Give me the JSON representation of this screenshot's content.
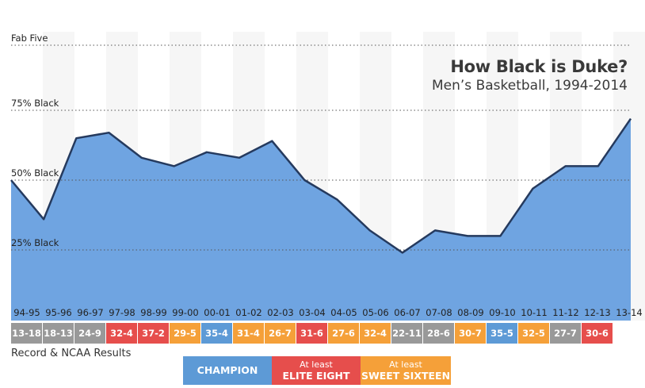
{
  "header": {
    "title": "How Black is Duke?",
    "subtitle": "Men’s Basketball, 1994-2014"
  },
  "reference_lines": [
    {
      "label": "Fab Five",
      "value": 100
    },
    {
      "label": "75% Black",
      "value": 75
    },
    {
      "label": "50% Black",
      "value": 50
    },
    {
      "label": "25% Black",
      "value": 25
    }
  ],
  "caption": "Record & NCAA Results",
  "legend": {
    "champion": "CHAMPION",
    "elite_small": "At least",
    "elite_big": "ELITE EIGHT",
    "sweet_small": "At least",
    "sweet_big": "SWEET SIXTEEN"
  },
  "colors": {
    "area_fill": "#6fa4e1",
    "line": "#253a5e",
    "champion": "#5d9ad6",
    "elite_eight": "#e64e4c",
    "sweet_sixteen": "#f5a039",
    "other": "#999999"
  },
  "chart_data": {
    "type": "area",
    "title": "How Black is Duke?",
    "subtitle": "Men’s Basketball, 1994-2014",
    "xlabel": "",
    "ylabel": "",
    "ylim": [
      0,
      100
    ],
    "x": [
      "94-95",
      "95-96",
      "96-97",
      "97-98",
      "98-99",
      "99-00",
      "00-01",
      "01-02",
      "02-03",
      "03-04",
      "04-05",
      "05-06",
      "06-07",
      "07-08",
      "08-09",
      "09-10",
      "10-11",
      "11-12",
      "12-13",
      "13-14"
    ],
    "series": [
      {
        "values": [
          50,
          36,
          65,
          67,
          58,
          55,
          60,
          58,
          64,
          50,
          43,
          32,
          24,
          32,
          30,
          30,
          47,
          55,
          55,
          72
        ]
      }
    ],
    "records": [
      "13-18",
      "18-13",
      "24-9",
      "32-4",
      "37-2",
      "29-5",
      "35-4",
      "31-4",
      "26-7",
      "31-6",
      "27-6",
      "32-4",
      "22-11",
      "28-6",
      "30-7",
      "35-5",
      "32-5",
      "27-7",
      "30-6"
    ],
    "results": [
      "other",
      "other",
      "other",
      "elite",
      "elite",
      "sweet",
      "champion",
      "sweet",
      "sweet",
      "elite",
      "sweet",
      "sweet",
      "other",
      "other",
      "sweet",
      "champion",
      "sweet",
      "other",
      "elite"
    ],
    "grid": true,
    "legend_position": "bottom"
  }
}
